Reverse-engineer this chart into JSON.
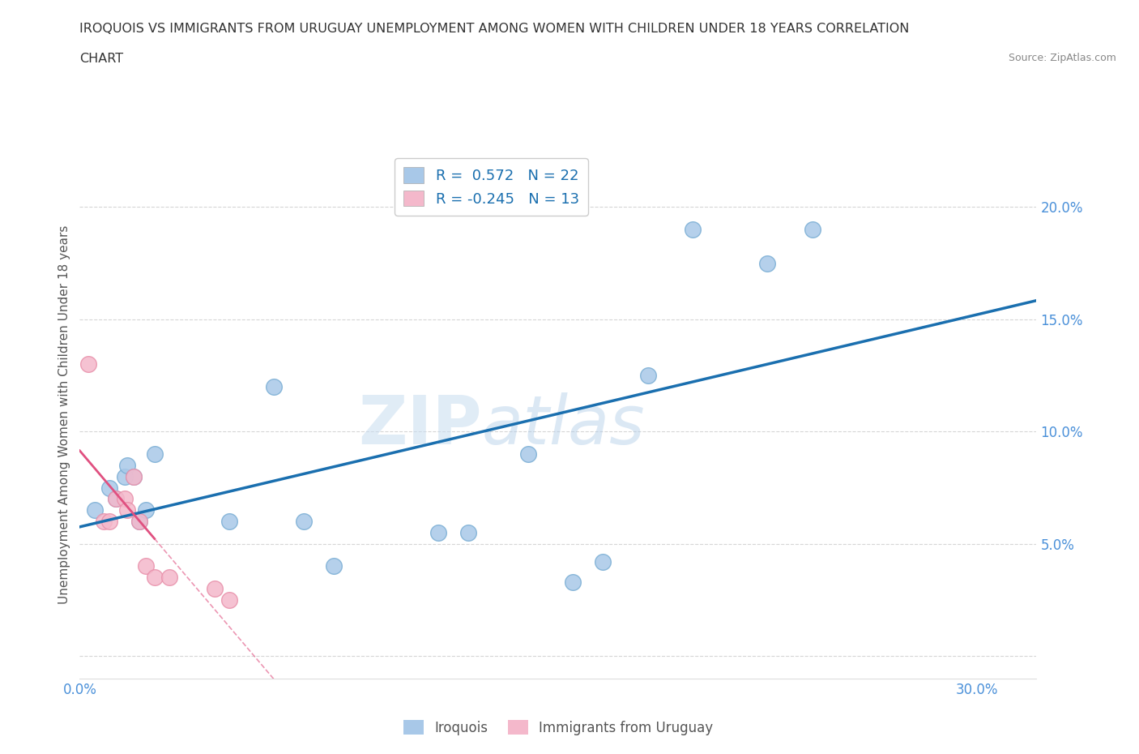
{
  "title_line1": "IROQUOIS VS IMMIGRANTS FROM URUGUAY UNEMPLOYMENT AMONG WOMEN WITH CHILDREN UNDER 18 YEARS CORRELATION",
  "title_line2": "CHART",
  "source": "Source: ZipAtlas.com",
  "ylabel": "Unemployment Among Women with Children Under 18 years",
  "xlim": [
    0.0,
    0.32
  ],
  "ylim": [
    -0.01,
    0.225
  ],
  "iroquois_color": "#a8c8e8",
  "iroquois_edge_color": "#7aaed4",
  "immigrants_color": "#f4b8cb",
  "immigrants_edge_color": "#e890aa",
  "iroquois_line_color": "#1a6faf",
  "immigrants_line_color": "#e05080",
  "R_iroquois": 0.572,
  "N_iroquois": 22,
  "R_immigrants": -0.245,
  "N_immigrants": 13,
  "iroquois_x": [
    0.005,
    0.01,
    0.012,
    0.015,
    0.016,
    0.018,
    0.02,
    0.022,
    0.025,
    0.05,
    0.065,
    0.075,
    0.085,
    0.12,
    0.13,
    0.15,
    0.165,
    0.175,
    0.19,
    0.205,
    0.23,
    0.245
  ],
  "iroquois_y": [
    0.065,
    0.075,
    0.07,
    0.08,
    0.085,
    0.08,
    0.06,
    0.065,
    0.09,
    0.06,
    0.12,
    0.06,
    0.04,
    0.055,
    0.055,
    0.09,
    0.033,
    0.042,
    0.125,
    0.19,
    0.175,
    0.19
  ],
  "immigrants_x": [
    0.003,
    0.008,
    0.01,
    0.012,
    0.015,
    0.016,
    0.018,
    0.02,
    0.022,
    0.025,
    0.03,
    0.045,
    0.05
  ],
  "immigrants_y": [
    0.13,
    0.06,
    0.06,
    0.07,
    0.07,
    0.065,
    0.08,
    0.06,
    0.04,
    0.035,
    0.035,
    0.03,
    0.025
  ],
  "watermark_top": "ZIP",
  "watermark_bot": "atlas",
  "legend_iroquois": "Iroquois",
  "legend_immigrants": "Immigrants from Uruguay",
  "background_color": "#ffffff",
  "grid_color": "#cccccc",
  "tick_label_color": "#4a90d9",
  "axis_label_color": "#555555"
}
